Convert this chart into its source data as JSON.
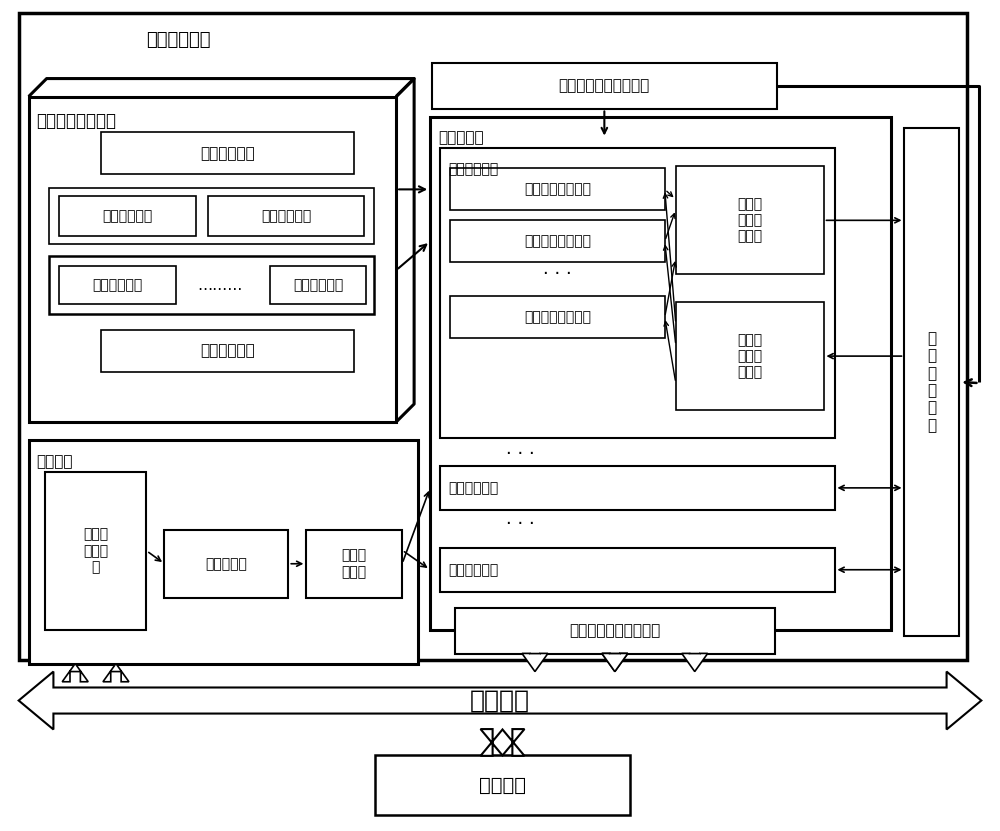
{
  "bg": "#ffffff",
  "lc": "#000000",
  "labels": {
    "row_unit": "可重构阵列运算行",
    "data_load": "数据载入单元",
    "byte_net": "字节置换网络",
    "bit_net": "比特置换网络",
    "alu": "算术逻辑单元",
    "dots_h": "………",
    "data_out": "数据输出单元",
    "processor": "可重构处理器",
    "input_fifo": "输入先进先出寄存器组",
    "array": "可重构阵列",
    "block": "可重构阵列块",
    "row1": "可重构阵列运算行",
    "row2": "可重构阵列运算行",
    "row3": "可重构阵列运算行",
    "write_sel": "写端口\n运算行\n选择器",
    "read_sel": "读端口\n运算行\n选择器",
    "block2": "可重构阵列块",
    "block3": "可重构阵列块",
    "out_fifo": "输出先进先出寄存器组",
    "cfg_unit": "配置单元",
    "cfg_iface": "配置与\n控制接\n口",
    "cfg_mem": "配置存储器",
    "cfg_parse": "配置解\n析模块",
    "sysbus": "系统总线",
    "mcu": "微处理器",
    "reg_heap": "通\n用\n寄\n存\n器\n堆"
  }
}
